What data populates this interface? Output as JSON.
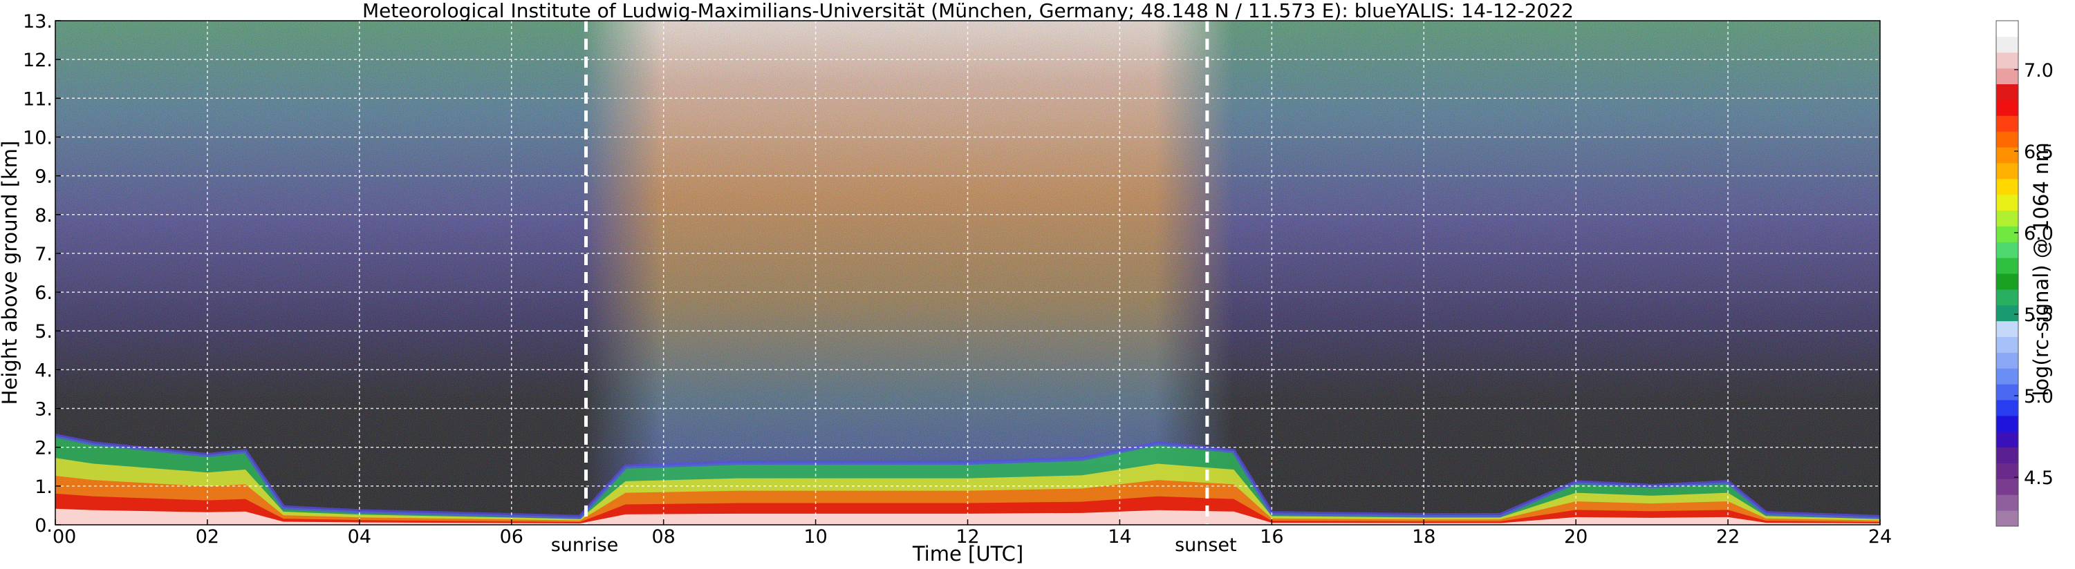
{
  "chart_data": {
    "type": "heatmap",
    "title": "Meteorological Institute of Ludwig-Maximilians-Universität (München, Germany; 48.148 N / 11.573 E):    blueYALIS: 14-12-2022",
    "xlabel": "Time [UTC]",
    "ylabel": "Height above ground [km]",
    "colorbar_label": "log(rc-signal) @ 1064 nm",
    "xlim": [
      0,
      24
    ],
    "ylim": [
      0,
      13
    ],
    "x_ticks": [
      0,
      2,
      4,
      6,
      8,
      10,
      12,
      14,
      16,
      18,
      20,
      22,
      24
    ],
    "x_tick_labels": [
      "00",
      "02",
      "04",
      "06",
      "08",
      "10",
      "12",
      "14",
      "16",
      "18",
      "20",
      "22",
      "24"
    ],
    "y_ticks": [
      0,
      1,
      2,
      3,
      4,
      5,
      6,
      7,
      8,
      9,
      10,
      11,
      12,
      13
    ],
    "y_tick_labels": [
      "0.",
      "1.",
      "2.",
      "3.",
      "4.",
      "5.",
      "6.",
      "7.",
      "8.",
      "9.",
      "10.",
      "11.",
      "12.",
      "13."
    ],
    "colorbar_range": [
      4.2,
      7.3
    ],
    "colorbar_ticks": [
      4.5,
      5.0,
      5.5,
      6.0,
      6.5,
      7.0
    ],
    "colorbar_tick_labels": [
      "4.5",
      "5.0",
      "5.5",
      "6.0",
      "6.5",
      "7.0"
    ],
    "colorbar_colors": [
      "#a07ca6",
      "#8e5f9c",
      "#7a3c8f",
      "#6a2a8a",
      "#5a1f90",
      "#3a10b8",
      "#1e14dc",
      "#2a3cf0",
      "#4a68f2",
      "#6a8ef4",
      "#8aa8f6",
      "#a6c0f8",
      "#c4d8fa",
      "#1a9a70",
      "#28b060",
      "#18a020",
      "#30c040",
      "#50d870",
      "#70e840",
      "#b0f030",
      "#e8f018",
      "#ffd800",
      "#ffb000",
      "#ff9000",
      "#ff6a00",
      "#ff4010",
      "#f01010",
      "#e01818",
      "#e8a0a0",
      "#f0c8c8",
      "#eeeeee",
      "#ffffff"
    ],
    "grid": true,
    "markers": [
      {
        "label": "sunrise",
        "x": 6.98
      },
      {
        "label": "sunset",
        "x": 15.15
      }
    ],
    "features": {
      "signal_noise_daytime_range": [
        7.0,
        15.2
      ],
      "boundary_layer_top_km": [
        [
          0.0,
          2.3
        ],
        [
          0.5,
          2.1
        ],
        [
          1.0,
          2.0
        ],
        [
          1.5,
          1.9
        ],
        [
          2.0,
          1.8
        ],
        [
          2.5,
          1.9
        ],
        [
          3.0,
          0.45
        ],
        [
          4.0,
          0.35
        ],
        [
          5.0,
          0.3
        ],
        [
          6.0,
          0.25
        ],
        [
          6.9,
          0.2
        ],
        [
          7.5,
          1.5
        ],
        [
          9.0,
          1.6
        ],
        [
          10.5,
          1.6
        ],
        [
          12.0,
          1.6
        ],
        [
          13.5,
          1.7
        ],
        [
          14.5,
          2.1
        ],
        [
          15.5,
          1.9
        ],
        [
          16.0,
          0.3
        ],
        [
          18.0,
          0.25
        ],
        [
          19.0,
          0.25
        ],
        [
          20.0,
          1.1
        ],
        [
          21.0,
          1.0
        ],
        [
          22.0,
          1.1
        ],
        [
          22.5,
          0.3
        ],
        [
          24.0,
          0.2
        ]
      ]
    }
  }
}
